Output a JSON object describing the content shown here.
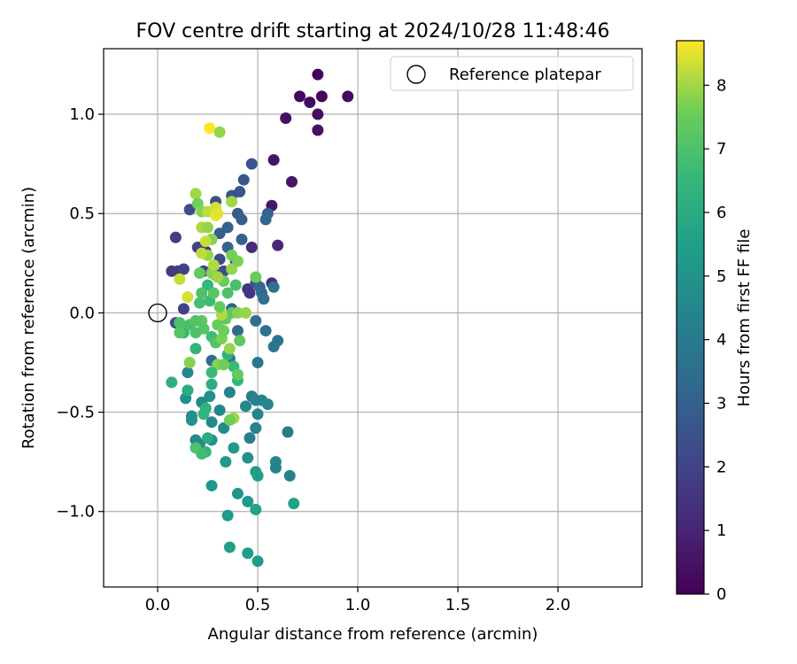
{
  "chart_data": {
    "type": "scatter",
    "title": "FOV centre drift starting at 2024/10/28 11:48:46",
    "xlabel": "Angular distance from reference (arcmin)",
    "ylabel": "Rotation from reference (arcmin)",
    "xlim": [
      -0.27,
      2.42
    ],
    "ylim": [
      -1.38,
      1.33
    ],
    "xticks": [
      0.0,
      0.5,
      1.0,
      1.5,
      2.0
    ],
    "xtick_labels": [
      "0.0",
      "0.5",
      "1.0",
      "1.5",
      "2.0"
    ],
    "yticks": [
      -1.0,
      -0.5,
      0.0,
      0.5,
      1.0
    ],
    "ytick_labels": [
      "−1.0",
      "−0.5",
      "0.0",
      "0.5",
      "1.0"
    ],
    "grid": true,
    "legend": {
      "location": "top-right",
      "entries": [
        "Reference platepar"
      ]
    },
    "reference_point": {
      "x": 0.0,
      "y": 0.0,
      "marker": "open-circle"
    },
    "colorbar": {
      "label": "Hours from first FF file",
      "colormap": "viridis",
      "range": [
        0,
        8.7
      ],
      "ticks": [
        0,
        1,
        2,
        3,
        4,
        5,
        6,
        7,
        8
      ],
      "tick_labels": [
        "0",
        "1",
        "2",
        "3",
        "4",
        "5",
        "6",
        "7",
        "8"
      ]
    },
    "points": [
      {
        "x": 0.8,
        "y": 1.2,
        "h": 0.1
      },
      {
        "x": 0.71,
        "y": 1.09,
        "h": 0.2
      },
      {
        "x": 0.82,
        "y": 1.09,
        "h": 0.15
      },
      {
        "x": 0.95,
        "y": 1.09,
        "h": 0.25
      },
      {
        "x": 0.76,
        "y": 1.06,
        "h": 0.3
      },
      {
        "x": 0.8,
        "y": 1.0,
        "h": 0.35
      },
      {
        "x": 0.64,
        "y": 0.98,
        "h": 0.4
      },
      {
        "x": 0.8,
        "y": 0.92,
        "h": 0.45
      },
      {
        "x": 0.58,
        "y": 0.77,
        "h": 0.5
      },
      {
        "x": 0.67,
        "y": 0.66,
        "h": 0.55
      },
      {
        "x": 0.57,
        "y": 0.54,
        "h": 0.6
      },
      {
        "x": 0.6,
        "y": 0.34,
        "h": 1.0
      },
      {
        "x": 0.47,
        "y": 0.33,
        "h": 1.2
      },
      {
        "x": 0.47,
        "y": 0.75,
        "h": 2.6
      },
      {
        "x": 0.43,
        "y": 0.67,
        "h": 2.7
      },
      {
        "x": 0.37,
        "y": 0.59,
        "h": 2.5
      },
      {
        "x": 0.41,
        "y": 0.61,
        "h": 2.6
      },
      {
        "x": 0.29,
        "y": 0.56,
        "h": 2.4
      },
      {
        "x": 0.16,
        "y": 0.52,
        "h": 2.3
      },
      {
        "x": 0.4,
        "y": 0.5,
        "h": 2.8
      },
      {
        "x": 0.42,
        "y": 0.47,
        "h": 2.9
      },
      {
        "x": 0.55,
        "y": 0.5,
        "h": 3.1
      },
      {
        "x": 0.54,
        "y": 0.47,
        "h": 3.2
      },
      {
        "x": 0.35,
        "y": 0.43,
        "h": 3.0
      },
      {
        "x": 0.31,
        "y": 0.4,
        "h": 2.9
      },
      {
        "x": 0.09,
        "y": 0.38,
        "h": 1.8
      },
      {
        "x": 0.42,
        "y": 0.37,
        "h": 3.1
      },
      {
        "x": 0.35,
        "y": 0.33,
        "h": 3.2
      },
      {
        "x": 0.2,
        "y": 0.33,
        "h": 2.0
      },
      {
        "x": 0.24,
        "y": 0.31,
        "h": 1.9
      },
      {
        "x": 0.31,
        "y": 0.27,
        "h": 2.2
      },
      {
        "x": 0.39,
        "y": 0.26,
        "h": 2.4
      },
      {
        "x": 0.07,
        "y": 0.21,
        "h": 1.7
      },
      {
        "x": 0.1,
        "y": 0.21,
        "h": 1.8
      },
      {
        "x": 0.13,
        "y": 0.22,
        "h": 1.9
      },
      {
        "x": 0.23,
        "y": 0.21,
        "h": 2.0
      },
      {
        "x": 0.29,
        "y": 0.19,
        "h": 2.1
      },
      {
        "x": 0.33,
        "y": 0.21,
        "h": 2.3
      },
      {
        "x": 0.45,
        "y": 0.12,
        "h": 1.5
      },
      {
        "x": 0.46,
        "y": 0.1,
        "h": 1.6
      },
      {
        "x": 0.49,
        "y": 0.15,
        "h": 2.5
      },
      {
        "x": 0.51,
        "y": 0.13,
        "h": 3.3
      },
      {
        "x": 0.52,
        "y": 0.1,
        "h": 3.4
      },
      {
        "x": 0.53,
        "y": 0.07,
        "h": 3.6
      },
      {
        "x": 0.57,
        "y": 0.15,
        "h": 1.4
      },
      {
        "x": 0.58,
        "y": 0.13,
        "h": 3.7
      },
      {
        "x": 0.13,
        "y": 0.02,
        "h": 2.0
      },
      {
        "x": 0.09,
        "y": -0.05,
        "h": 2.3
      },
      {
        "x": 0.37,
        "y": 0.02,
        "h": 3.0
      },
      {
        "x": 0.4,
        "y": -0.09,
        "h": 3.3
      },
      {
        "x": 0.49,
        "y": -0.04,
        "h": 3.6
      },
      {
        "x": 0.54,
        "y": -0.09,
        "h": 3.7
      },
      {
        "x": 0.6,
        "y": -0.14,
        "h": 3.8
      },
      {
        "x": 0.58,
        "y": -0.17,
        "h": 3.9
      },
      {
        "x": 0.5,
        "y": -0.25,
        "h": 3.9
      },
      {
        "x": 0.27,
        "y": -0.24,
        "h": 3.5
      },
      {
        "x": 0.36,
        "y": -0.23,
        "h": 3.7
      },
      {
        "x": 0.15,
        "y": -0.3,
        "h": 4.5
      },
      {
        "x": 0.36,
        "y": -0.4,
        "h": 4.4
      },
      {
        "x": 0.47,
        "y": -0.42,
        "h": 4.2
      },
      {
        "x": 0.49,
        "y": -0.44,
        "h": 4.3
      },
      {
        "x": 0.52,
        "y": -0.44,
        "h": 4.4
      },
      {
        "x": 0.55,
        "y": -0.46,
        "h": 4.5
      },
      {
        "x": 0.5,
        "y": -0.51,
        "h": 4.4
      },
      {
        "x": 0.44,
        "y": -0.47,
        "h": 4.6
      },
      {
        "x": 0.31,
        "y": -0.49,
        "h": 4.5
      },
      {
        "x": 0.22,
        "y": -0.45,
        "h": 4.7
      },
      {
        "x": 0.26,
        "y": -0.42,
        "h": 4.8
      },
      {
        "x": 0.14,
        "y": -0.43,
        "h": 4.9
      },
      {
        "x": 0.17,
        "y": -0.52,
        "h": 4.8
      },
      {
        "x": 0.17,
        "y": -0.54,
        "h": 4.9
      },
      {
        "x": 0.27,
        "y": -0.55,
        "h": 4.6
      },
      {
        "x": 0.33,
        "y": -0.58,
        "h": 4.7
      },
      {
        "x": 0.49,
        "y": -0.58,
        "h": 4.3
      },
      {
        "x": 0.65,
        "y": -0.6,
        "h": 4.0
      },
      {
        "x": 0.46,
        "y": -0.63,
        "h": 4.2
      },
      {
        "x": 0.27,
        "y": -0.64,
        "h": 4.8
      },
      {
        "x": 0.19,
        "y": -0.64,
        "h": 4.6
      },
      {
        "x": 0.21,
        "y": -0.66,
        "h": 4.7
      },
      {
        "x": 0.38,
        "y": -0.68,
        "h": 5.2
      },
      {
        "x": 0.45,
        "y": -0.73,
        "h": 4.9
      },
      {
        "x": 0.34,
        "y": -0.75,
        "h": 5.3
      },
      {
        "x": 0.59,
        "y": -0.75,
        "h": 4.5
      },
      {
        "x": 0.59,
        "y": -0.78,
        "h": 4.4
      },
      {
        "x": 0.49,
        "y": -0.8,
        "h": 5.4
      },
      {
        "x": 0.5,
        "y": -0.82,
        "h": 5.5
      },
      {
        "x": 0.66,
        "y": -0.82,
        "h": 4.3
      },
      {
        "x": 0.27,
        "y": -0.87,
        "h": 5.2
      },
      {
        "x": 0.4,
        "y": -0.91,
        "h": 5.1
      },
      {
        "x": 0.45,
        "y": -0.95,
        "h": 5.3
      },
      {
        "x": 0.68,
        "y": -0.96,
        "h": 5.6
      },
      {
        "x": 0.49,
        "y": -0.99,
        "h": 5.6
      },
      {
        "x": 0.35,
        "y": -1.02,
        "h": 5.3
      },
      {
        "x": 0.36,
        "y": -1.18,
        "h": 5.5
      },
      {
        "x": 0.45,
        "y": -1.21,
        "h": 5.4
      },
      {
        "x": 0.5,
        "y": -1.25,
        "h": 5.4
      },
      {
        "x": 0.07,
        "y": -0.35,
        "h": 6.2
      },
      {
        "x": 0.15,
        "y": -0.39,
        "h": 6.0
      },
      {
        "x": 0.25,
        "y": -0.63,
        "h": 6.0
      },
      {
        "x": 0.27,
        "y": -0.36,
        "h": 6.1
      },
      {
        "x": 0.4,
        "y": -0.34,
        "h": 6.5
      },
      {
        "x": 0.38,
        "y": -0.27,
        "h": 6.6
      },
      {
        "x": 0.35,
        "y": -0.21,
        "h": 6.3
      },
      {
        "x": 0.24,
        "y": -0.48,
        "h": 6.3
      },
      {
        "x": 0.23,
        "y": -0.51,
        "h": 6.4
      },
      {
        "x": 0.24,
        "y": -0.7,
        "h": 6.4
      },
      {
        "x": 0.19,
        "y": -0.68,
        "h": 7.0
      },
      {
        "x": 0.22,
        "y": -0.71,
        "h": 6.8
      },
      {
        "x": 0.38,
        "y": -0.53,
        "h": 8.0
      },
      {
        "x": 0.36,
        "y": -0.54,
        "h": 7.6
      },
      {
        "x": 0.4,
        "y": -0.31,
        "h": 7.4
      },
      {
        "x": 0.19,
        "y": -0.18,
        "h": 6.4
      },
      {
        "x": 0.16,
        "y": -0.25,
        "h": 7.8
      },
      {
        "x": 0.13,
        "y": -0.1,
        "h": 6.5
      },
      {
        "x": 0.16,
        "y": -0.06,
        "h": 6.9
      },
      {
        "x": 0.19,
        "y": -0.1,
        "h": 7.0
      },
      {
        "x": 0.22,
        "y": -0.04,
        "h": 7.3
      },
      {
        "x": 0.23,
        "y": -0.08,
        "h": 7.2
      },
      {
        "x": 0.27,
        "y": -0.12,
        "h": 6.7
      },
      {
        "x": 0.29,
        "y": -0.15,
        "h": 7.1
      },
      {
        "x": 0.3,
        "y": -0.06,
        "h": 7.5
      },
      {
        "x": 0.32,
        "y": -0.13,
        "h": 7.7
      },
      {
        "x": 0.33,
        "y": -0.09,
        "h": 7.6
      },
      {
        "x": 0.34,
        "y": -0.03,
        "h": 7.4
      },
      {
        "x": 0.36,
        "y": -0.18,
        "h": 7.9
      },
      {
        "x": 0.37,
        "y": 0.0,
        "h": 7.3
      },
      {
        "x": 0.3,
        "y": -0.26,
        "h": 7.8
      },
      {
        "x": 0.33,
        "y": -0.26,
        "h": 7.6
      },
      {
        "x": 0.26,
        "y": 0.06,
        "h": 6.7
      },
      {
        "x": 0.21,
        "y": 0.05,
        "h": 6.8
      },
      {
        "x": 0.25,
        "y": 0.14,
        "h": 6.5
      },
      {
        "x": 0.22,
        "y": 0.1,
        "h": 7.0
      },
      {
        "x": 0.28,
        "y": 0.1,
        "h": 7.2
      },
      {
        "x": 0.35,
        "y": 0.1,
        "h": 7.0
      },
      {
        "x": 0.39,
        "y": 0.14,
        "h": 6.9
      },
      {
        "x": 0.33,
        "y": 0.16,
        "h": 7.5
      },
      {
        "x": 0.27,
        "y": 0.2,
        "h": 7.8
      },
      {
        "x": 0.21,
        "y": 0.2,
        "h": 7.4
      },
      {
        "x": 0.28,
        "y": 0.24,
        "h": 8.1
      },
      {
        "x": 0.3,
        "y": 0.18,
        "h": 8.0
      },
      {
        "x": 0.37,
        "y": 0.22,
        "h": 7.9
      },
      {
        "x": 0.37,
        "y": 0.29,
        "h": 7.6
      },
      {
        "x": 0.4,
        "y": 0.26,
        "h": 7.7
      },
      {
        "x": 0.25,
        "y": 0.29,
        "h": 7.9
      },
      {
        "x": 0.11,
        "y": 0.17,
        "h": 8.3
      },
      {
        "x": 0.15,
        "y": 0.08,
        "h": 8.4
      },
      {
        "x": 0.49,
        "y": 0.18,
        "h": 7.5
      },
      {
        "x": 0.19,
        "y": 0.6,
        "h": 8.0
      },
      {
        "x": 0.2,
        "y": 0.55,
        "h": 7.6
      },
      {
        "x": 0.22,
        "y": 0.51,
        "h": 7.8
      },
      {
        "x": 0.25,
        "y": 0.51,
        "h": 8.2
      },
      {
        "x": 0.29,
        "y": 0.53,
        "h": 8.4
      },
      {
        "x": 0.29,
        "y": 0.49,
        "h": 8.6
      },
      {
        "x": 0.3,
        "y": 0.5,
        "h": 8.5
      },
      {
        "x": 0.37,
        "y": 0.56,
        "h": 8.0
      },
      {
        "x": 0.22,
        "y": 0.43,
        "h": 8.1
      },
      {
        "x": 0.25,
        "y": 0.43,
        "h": 7.9
      },
      {
        "x": 0.27,
        "y": 0.37,
        "h": 7.8
      },
      {
        "x": 0.24,
        "y": 0.36,
        "h": 8.3
      },
      {
        "x": 0.22,
        "y": 0.3,
        "h": 8.2
      },
      {
        "x": 0.26,
        "y": 0.93,
        "h": 8.7
      },
      {
        "x": 0.31,
        "y": 0.91,
        "h": 7.9
      },
      {
        "x": 0.19,
        "y": -0.04,
        "h": 7.1
      },
      {
        "x": 0.11,
        "y": -0.05,
        "h": 7.0
      },
      {
        "x": 0.11,
        "y": -0.1,
        "h": 7.2
      },
      {
        "x": 0.41,
        "y": -0.14,
        "h": 7.3
      },
      {
        "x": 0.27,
        "y": -0.3,
        "h": 6.6
      },
      {
        "x": 0.4,
        "y": 0.0,
        "h": 7.8
      },
      {
        "x": 0.44,
        "y": 0.0,
        "h": 7.9
      },
      {
        "x": 0.32,
        "y": -0.01,
        "h": 8.1
      },
      {
        "x": 0.31,
        "y": 0.03,
        "h": 7.4
      }
    ]
  }
}
